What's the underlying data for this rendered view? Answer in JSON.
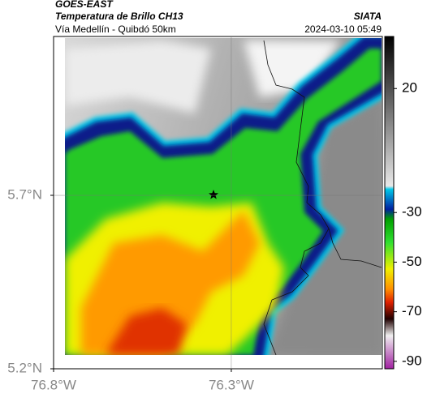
{
  "header": {
    "satellite": "GOES-EAST",
    "product": "Temperatura de Brillo CH13",
    "route": "Vía Medellín - Quibdó 50km",
    "source": "SIATA",
    "datetime": "2024-03-10 05:49"
  },
  "map": {
    "xlim": [
      -76.8,
      -75.875
    ],
    "ylim": [
      5.2,
      6.158
    ],
    "xticks": [
      {
        "value": -76.8,
        "label": "76.8°W"
      },
      {
        "value": -76.3,
        "label": "76.3°W"
      }
    ],
    "yticks": [
      {
        "value": 5.2,
        "label": "5.2°N"
      },
      {
        "value": 5.7,
        "label": "5.7°N"
      }
    ],
    "grid": true
  },
  "colorbar": {
    "lim": [
      41,
      -93
    ],
    "ticks": [
      20,
      -30,
      -50,
      -70,
      -90
    ]
  }
}
